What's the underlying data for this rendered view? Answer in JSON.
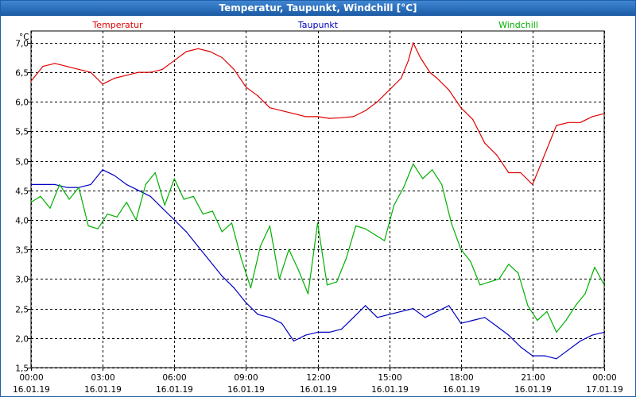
{
  "window": {
    "title": "Temperatur, Taupunkt, Windchill [°C]"
  },
  "chart_data": {
    "type": "line",
    "title": "Temperatur, Taupunkt, Windchill [°C]",
    "ylabel": "°C",
    "ylim": [
      1.5,
      7.2
    ],
    "yticks": [
      1.5,
      2.0,
      2.5,
      3.0,
      3.5,
      4.0,
      4.5,
      5.0,
      5.5,
      6.0,
      6.5,
      7.0
    ],
    "ytick_labels": [
      "1,5",
      "2,0",
      "2,5",
      "3,0",
      "3,5",
      "4,0",
      "4,5",
      "5,0",
      "5,5",
      "6,0",
      "6,5",
      "7,0"
    ],
    "xlim": [
      0,
      24
    ],
    "xticks": [
      0,
      3,
      6,
      9,
      12,
      15,
      18,
      21,
      24
    ],
    "xtick_times": [
      "00:00",
      "03:00",
      "06:00",
      "09:00",
      "12:00",
      "15:00",
      "18:00",
      "21:00",
      "00:00"
    ],
    "xtick_dates": [
      "16.01.19",
      "16.01.19",
      "16.01.19",
      "16.01.19",
      "16.01.19",
      "16.01.19",
      "16.01.19",
      "16.01.19",
      "17.01.19"
    ],
    "grid": true,
    "series": [
      {
        "name": "Temperatur",
        "color": "#e00000",
        "x": [
          0,
          0.5,
          1,
          1.5,
          2,
          2.5,
          3,
          3.5,
          4,
          4.5,
          5,
          5.5,
          6,
          6.5,
          7,
          7.5,
          8,
          8.5,
          9,
          9.5,
          10,
          10.5,
          11,
          11.5,
          12,
          12.5,
          13,
          13.5,
          14,
          14.5,
          15,
          15.5,
          15.8,
          16,
          16.3,
          16.7,
          17,
          17.5,
          18,
          18.5,
          19,
          19.5,
          20,
          20.5,
          21,
          21.5,
          22,
          22.5,
          23,
          23.5,
          24
        ],
        "values": [
          6.35,
          6.6,
          6.65,
          6.6,
          6.55,
          6.5,
          6.3,
          6.4,
          6.45,
          6.5,
          6.5,
          6.55,
          6.7,
          6.85,
          6.9,
          6.85,
          6.75,
          6.55,
          6.25,
          6.1,
          5.9,
          5.85,
          5.8,
          5.75,
          5.75,
          5.72,
          5.73,
          5.75,
          5.85,
          6.0,
          6.2,
          6.4,
          6.7,
          7.0,
          6.75,
          6.5,
          6.4,
          6.2,
          5.9,
          5.7,
          5.3,
          5.1,
          4.8,
          4.8,
          4.6,
          5.1,
          5.6,
          5.65,
          5.65,
          5.75,
          5.8
        ]
      },
      {
        "name": "Taupunkt",
        "color": "#0000c0",
        "x": [
          0,
          0.5,
          1,
          1.5,
          2,
          2.5,
          3,
          3.5,
          4,
          4.5,
          5,
          5.5,
          6,
          6.5,
          7,
          7.5,
          8,
          8.5,
          9,
          9.5,
          10,
          10.5,
          11,
          11.5,
          12,
          12.5,
          13,
          13.5,
          14,
          14.5,
          15,
          15.5,
          16,
          16.5,
          17,
          17.5,
          18,
          18.5,
          19,
          19.5,
          20,
          20.5,
          21,
          21.5,
          22,
          22.5,
          23,
          23.5,
          24
        ],
        "values": [
          4.6,
          4.6,
          4.6,
          4.55,
          4.55,
          4.6,
          4.85,
          4.75,
          4.6,
          4.5,
          4.4,
          4.2,
          4.0,
          3.8,
          3.55,
          3.3,
          3.05,
          2.85,
          2.6,
          2.4,
          2.35,
          2.25,
          1.95,
          2.05,
          2.1,
          2.1,
          2.15,
          2.35,
          2.55,
          2.35,
          2.4,
          2.45,
          2.5,
          2.35,
          2.45,
          2.55,
          2.25,
          2.3,
          2.35,
          2.2,
          2.05,
          1.85,
          1.7,
          1.7,
          1.65,
          1.8,
          1.95,
          2.05,
          2.1
        ]
      },
      {
        "name": "Windchill",
        "color": "#00b000",
        "x": [
          0,
          0.4,
          0.8,
          1.2,
          1.6,
          2,
          2.4,
          2.8,
          3.2,
          3.6,
          4,
          4.4,
          4.8,
          5.2,
          5.6,
          6,
          6.4,
          6.8,
          7.2,
          7.6,
          8,
          8.4,
          8.8,
          9.2,
          9.6,
          10,
          10.4,
          10.8,
          11.2,
          11.6,
          12,
          12.4,
          12.8,
          13.2,
          13.6,
          14,
          14.4,
          14.8,
          15.2,
          15.6,
          16,
          16.4,
          16.8,
          17.2,
          17.6,
          18,
          18.4,
          18.8,
          19.2,
          19.6,
          20,
          20.4,
          20.8,
          21.2,
          21.6,
          22,
          22.4,
          22.8,
          23.2,
          23.6,
          24
        ],
        "values": [
          4.3,
          4.4,
          4.2,
          4.6,
          4.35,
          4.55,
          3.9,
          3.85,
          4.1,
          4.05,
          4.3,
          4.0,
          4.6,
          4.8,
          4.25,
          4.7,
          4.35,
          4.4,
          4.1,
          4.15,
          3.8,
          3.95,
          3.35,
          2.85,
          3.55,
          3.9,
          3.0,
          3.5,
          3.15,
          2.75,
          3.95,
          2.9,
          2.95,
          3.35,
          3.9,
          3.85,
          3.75,
          3.65,
          4.25,
          4.55,
          4.95,
          4.7,
          4.85,
          4.6,
          3.95,
          3.5,
          3.3,
          2.9,
          2.95,
          3.0,
          3.25,
          3.1,
          2.55,
          2.3,
          2.45,
          2.1,
          2.3,
          2.55,
          2.75,
          3.2,
          2.9
        ]
      }
    ]
  }
}
